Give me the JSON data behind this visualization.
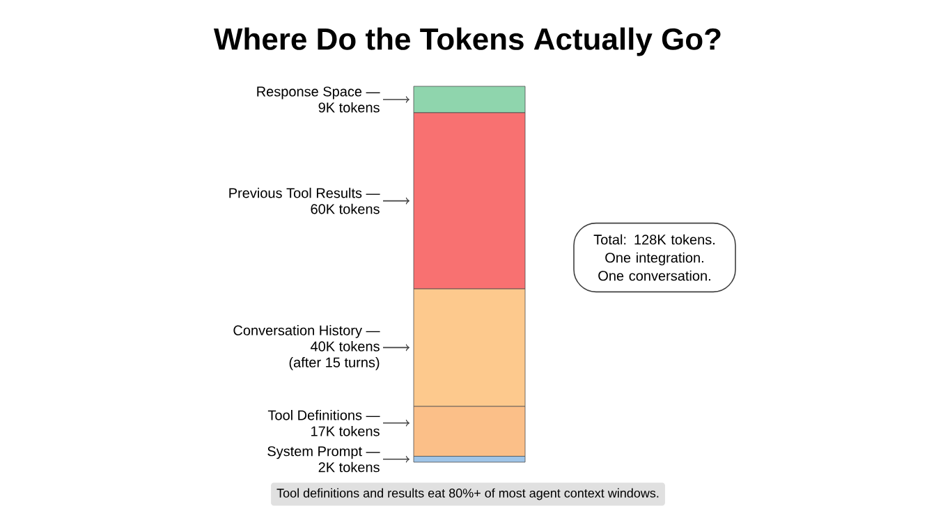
{
  "chart_data": {
    "type": "bar",
    "title": "Where Do the Tokens Actually Go?",
    "stacked": true,
    "legend": "left",
    "categories": [
      null
    ],
    "series": [
      {
        "name": "System Prompt —",
        "color": "#9fc5e8",
        "values": [
          2
        ],
        "value_labels": [
          "2K tokens"
        ]
      },
      {
        "name": "Tool Definitions —",
        "color": "#fbbf88",
        "values": [
          17
        ],
        "value_labels": [
          "17K tokens"
        ]
      },
      {
        "name": "Conversation History —",
        "color": "#fdc98d",
        "values": [
          40
        ],
        "value_labels": [
          "40K tokens"
        ]
      },
      {
        "name": "Previous Tool Results —",
        "color": "#f87171",
        "values": [
          60
        ],
        "value_labels": [
          "60K tokens"
        ]
      },
      {
        "name": "Response Space —",
        "color": "#8fd5ad",
        "values": [
          9
        ],
        "value_labels": [
          "9K tokens"
        ]
      }
    ],
    "annotations": [
      "Total: 128K tokens. One integration. One conversation.",
      "Tool definitions and results eat 80%+ of most agent context windows.",
      "(after 15 turns)"
    ]
  }
}
